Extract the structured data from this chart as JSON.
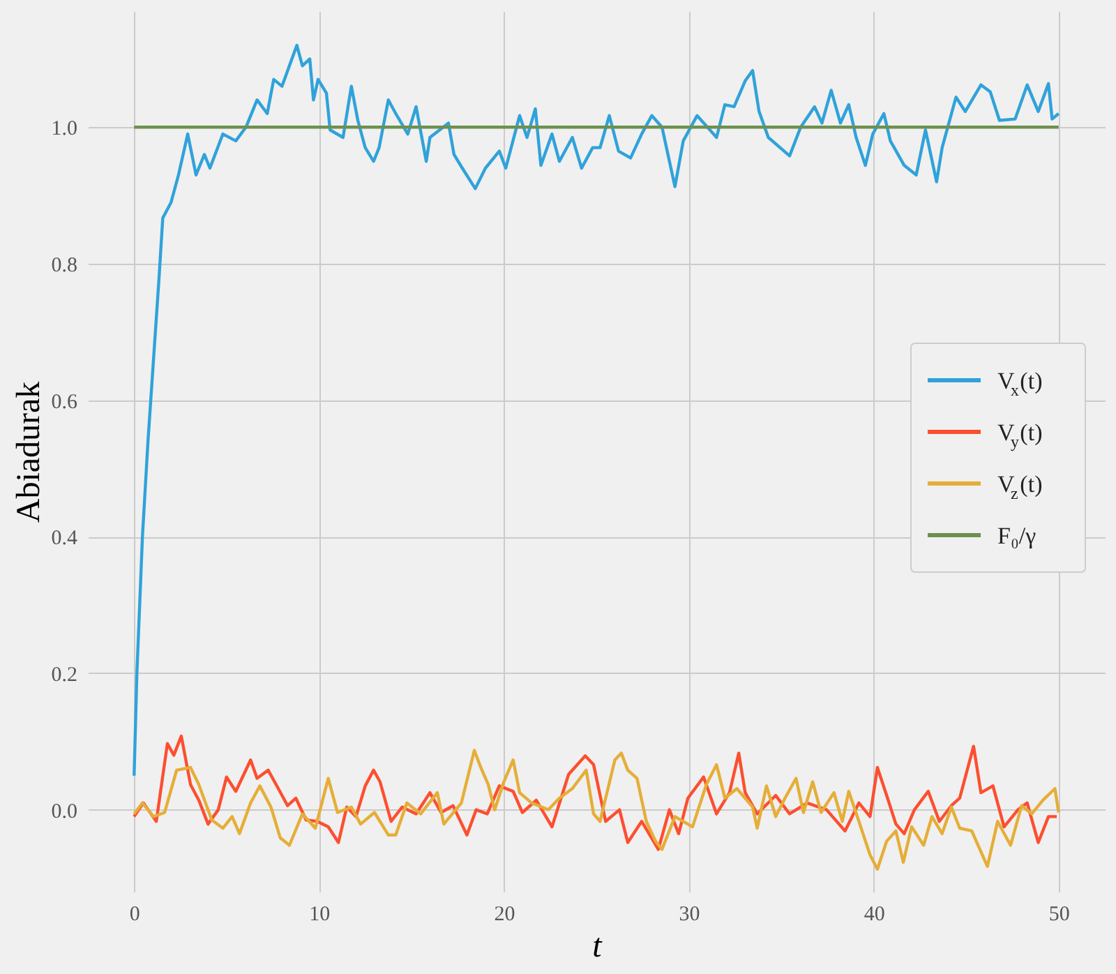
{
  "chart_data": {
    "type": "line",
    "xlabel": "t",
    "ylabel": "Abiadurak",
    "xlim": [
      -2.5,
      52.5
    ],
    "ylim": [
      -0.12,
      1.17
    ],
    "xticks": [
      0,
      10,
      20,
      30,
      40,
      50
    ],
    "yticks": [
      {
        "value": 0,
        "label": "0.0"
      },
      {
        "value": 0.2,
        "label": "0.2"
      },
      {
        "value": 0.4,
        "label": "0.4"
      },
      {
        "value": 0.6,
        "label": "0.6"
      },
      {
        "value": 0.8,
        "label": "0.8"
      },
      {
        "value": 1,
        "label": "1.0"
      }
    ],
    "grid": true,
    "legend": "right",
    "marker": "none",
    "line_style": "solid",
    "series": [
      {
        "name": "V$_{x}$(t)",
        "color": "#30a2da",
        "x": [
          0,
          0.15,
          0.45,
          0.75,
          1.35,
          1.55,
          2.0,
          2.4,
          2.9,
          3.35,
          3.8,
          4.1,
          4.8,
          5.5,
          6.05,
          6.65,
          7.2,
          7.55,
          8.0,
          8.8,
          9.1,
          9.5,
          9.7,
          9.95,
          10.4,
          10.6,
          11.3,
          11.75,
          12.1,
          12.5,
          12.95,
          13.25,
          13.75,
          14.15,
          14.8,
          15.25,
          15.8,
          16.0,
          17.0,
          17.3,
          17.75,
          18.45,
          19.0,
          19.75,
          20.1,
          20.85,
          21.25,
          21.7,
          22.0,
          22.6,
          23.0,
          23.7,
          24.2,
          24.8,
          25.2,
          25.7,
          26.2,
          26.85,
          27.45,
          28.0,
          28.55,
          29.25,
          29.7,
          30.45,
          31.5,
          31.95,
          32.45,
          33.05,
          33.45,
          33.8,
          34.3,
          35.45,
          36.05,
          36.8,
          37.2,
          37.7,
          38.2,
          38.65,
          39.05,
          39.55,
          39.95,
          40.55,
          40.9,
          41.65,
          42.3,
          42.8,
          43.4,
          43.7,
          44.45,
          44.95,
          45.8,
          46.3,
          46.8,
          47.65,
          48.3,
          48.9,
          49.45,
          49.65,
          50.0
        ],
        "values": [
          0.05,
          0.2,
          0.4,
          0.54,
          0.78,
          0.867,
          0.89,
          0.93,
          0.99,
          0.93,
          0.96,
          0.94,
          0.99,
          0.98,
          1.0,
          1.04,
          1.02,
          1.07,
          1.06,
          1.12,
          1.09,
          1.1,
          1.04,
          1.07,
          1.05,
          0.996,
          0.985,
          1.06,
          1.01,
          0.97,
          0.95,
          0.97,
          1.04,
          1.02,
          0.99,
          1.03,
          0.95,
          0.985,
          1.006,
          0.96,
          0.94,
          0.91,
          0.94,
          0.965,
          0.94,
          1.017,
          0.985,
          1.027,
          0.944,
          0.99,
          0.95,
          0.985,
          0.94,
          0.97,
          0.97,
          1.017,
          0.965,
          0.955,
          0.99,
          1.017,
          1.0,
          0.913,
          0.98,
          1.017,
          0.985,
          1.033,
          1.03,
          1.068,
          1.083,
          1.023,
          0.985,
          0.958,
          1.0,
          1.03,
          1.006,
          1.054,
          1.006,
          1.033,
          0.985,
          0.944,
          0.99,
          1.02,
          0.98,
          0.944,
          0.93,
          0.996,
          0.92,
          0.97,
          1.044,
          1.023,
          1.062,
          1.052,
          1.01,
          1.012,
          1.062,
          1.023,
          1.064,
          1.012,
          1.02
        ]
      },
      {
        "name": "V$_{y}$(t)",
        "color": "#fc4f30",
        "x": [
          0,
          0.5,
          1.2,
          1.8,
          2.15,
          2.55,
          3.05,
          3.5,
          4.0,
          4.55,
          5.0,
          5.5,
          6.3,
          6.65,
          7.25,
          7.8,
          8.3,
          8.75,
          9.3,
          9.9,
          10.5,
          11.05,
          11.5,
          12.0,
          12.5,
          12.95,
          13.3,
          13.9,
          14.5,
          15.25,
          16.0,
          16.6,
          17.25,
          18.0,
          18.5,
          19.1,
          19.75,
          20.5,
          21.0,
          21.75,
          22.6,
          23.5,
          24.4,
          24.85,
          25.5,
          26.25,
          26.7,
          27.45,
          28.35,
          28.95,
          29.45,
          29.95,
          30.8,
          31.5,
          32.2,
          32.7,
          33.05,
          33.7,
          34.7,
          35.45,
          36.4,
          37.45,
          38.45,
          39.2,
          39.8,
          40.2,
          40.7,
          41.2,
          41.65,
          42.2,
          42.95,
          43.55,
          44.2,
          44.65,
          45.4,
          45.8,
          46.45,
          47.05,
          47.8,
          48.3,
          48.9,
          49.45,
          49.9
        ],
        "values": [
          -0.01,
          0.01,
          -0.017,
          0.097,
          0.08,
          0.108,
          0.037,
          0.014,
          -0.021,
          0.0,
          0.048,
          0.027,
          0.073,
          0.046,
          0.058,
          0.031,
          0.006,
          0.017,
          -0.015,
          -0.017,
          -0.025,
          -0.048,
          0.004,
          -0.01,
          0.035,
          0.058,
          0.041,
          -0.017,
          0.004,
          -0.006,
          0.025,
          -0.004,
          0.006,
          -0.037,
          0.0,
          -0.006,
          0.035,
          0.027,
          -0.004,
          0.014,
          -0.025,
          0.052,
          0.079,
          0.066,
          -0.017,
          0.0,
          -0.048,
          -0.017,
          -0.058,
          0.0,
          -0.035,
          0.017,
          0.048,
          -0.006,
          0.025,
          0.083,
          0.025,
          -0.006,
          0.021,
          -0.006,
          0.01,
          0.0,
          -0.031,
          0.01,
          -0.01,
          0.062,
          0.021,
          -0.021,
          -0.035,
          0.0,
          0.027,
          -0.017,
          0.006,
          0.017,
          0.093,
          0.025,
          0.035,
          -0.025,
          0.0,
          0.01,
          -0.048,
          -0.01,
          -0.01
        ]
      },
      {
        "name": "V$_{z}$(t)",
        "color": "#e5ae38",
        "x": [
          0,
          0.45,
          1.05,
          1.65,
          2.3,
          3.05,
          3.5,
          4.2,
          4.8,
          5.3,
          5.7,
          6.3,
          6.8,
          7.4,
          7.9,
          8.4,
          9.1,
          9.8,
          10.5,
          11.0,
          11.75,
          12.25,
          13.0,
          13.75,
          14.15,
          14.75,
          15.5,
          16.4,
          16.75,
          17.7,
          18.4,
          18.75,
          19.15,
          19.5,
          20.0,
          20.5,
          20.85,
          21.5,
          22.4,
          23.0,
          23.7,
          24.45,
          24.85,
          25.2,
          26.0,
          26.35,
          26.7,
          27.2,
          27.7,
          28.2,
          28.55,
          29.25,
          30.2,
          30.95,
          31.5,
          31.95,
          32.6,
          33.45,
          33.7,
          34.2,
          34.7,
          35.2,
          35.8,
          36.2,
          36.7,
          37.15,
          37.85,
          38.3,
          38.65,
          39.2,
          39.8,
          40.2,
          40.7,
          41.2,
          41.6,
          42.05,
          42.7,
          43.15,
          43.7,
          44.2,
          44.65,
          45.3,
          46.15,
          46.7,
          47.4,
          48.0,
          48.55,
          49.15,
          49.8,
          50.0
        ],
        "values": [
          -0.006,
          0.01,
          -0.01,
          -0.004,
          0.058,
          0.062,
          0.037,
          -0.015,
          -0.027,
          -0.01,
          -0.035,
          0.01,
          0.035,
          0.004,
          -0.041,
          -0.052,
          -0.006,
          -0.027,
          0.046,
          -0.004,
          0.004,
          -0.021,
          -0.004,
          -0.037,
          -0.037,
          0.01,
          -0.006,
          0.025,
          -0.021,
          0.01,
          0.087,
          0.062,
          0.037,
          0.0,
          0.041,
          0.073,
          0.025,
          0.01,
          0.0,
          0.017,
          0.031,
          0.058,
          -0.006,
          -0.017,
          0.073,
          0.083,
          0.058,
          0.046,
          -0.017,
          -0.046,
          -0.058,
          -0.01,
          -0.025,
          0.037,
          0.066,
          0.017,
          0.031,
          0.004,
          -0.027,
          0.035,
          -0.01,
          0.017,
          0.046,
          -0.004,
          0.041,
          -0.004,
          0.025,
          -0.017,
          0.027,
          -0.017,
          -0.066,
          -0.087,
          -0.046,
          -0.031,
          -0.077,
          -0.025,
          -0.052,
          -0.01,
          -0.035,
          0.004,
          -0.027,
          -0.031,
          -0.083,
          -0.017,
          -0.052,
          0.006,
          -0.006,
          0.014,
          0.031,
          -0.004
        ]
      },
      {
        "name": "F₀/γ",
        "color": "#6d904f",
        "x": [
          0,
          50
        ],
        "values": [
          1,
          1
        ]
      }
    ]
  }
}
